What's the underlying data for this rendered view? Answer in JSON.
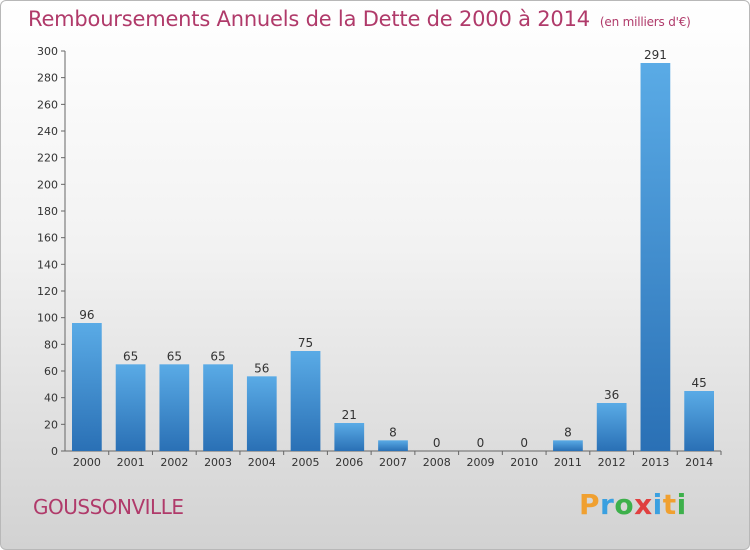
{
  "title": "Remboursements Annuels de la Dette de 2000 à 2014",
  "subtitle": "(en milliers d'€)",
  "commune": "GOUSSONVILLE",
  "logo": {
    "text": "Proxiti",
    "colors": [
      "#f0a030",
      "#3aa0e0",
      "#3db04b",
      "#e04040",
      "#3aa0e0",
      "#f0a030",
      "#3db04b"
    ]
  },
  "colors": {
    "bar": "#3a8fd6",
    "bar_light": "#5aabe6",
    "bar_dark": "#2a70b5",
    "title": "#b03a6a",
    "axis": "#444444"
  },
  "chart_data": {
    "type": "bar",
    "title": "Remboursements Annuels de la Dette de 2000 à 2014",
    "subtitle": "(en milliers d'€)",
    "categories": [
      "2000",
      "2001",
      "2002",
      "2003",
      "2004",
      "2005",
      "2006",
      "2007",
      "2008",
      "2009",
      "2010",
      "2011",
      "2012",
      "2013",
      "2014"
    ],
    "values": [
      96,
      65,
      65,
      65,
      56,
      75,
      21,
      8,
      0,
      0,
      0,
      8,
      36,
      291,
      45
    ],
    "ylim": [
      0,
      300
    ],
    "yticks": [
      0,
      20,
      40,
      60,
      80,
      100,
      120,
      140,
      160,
      180,
      200,
      220,
      240,
      260,
      280,
      300
    ],
    "xlabel": "",
    "ylabel": "",
    "grid": false,
    "data_labels": true
  }
}
